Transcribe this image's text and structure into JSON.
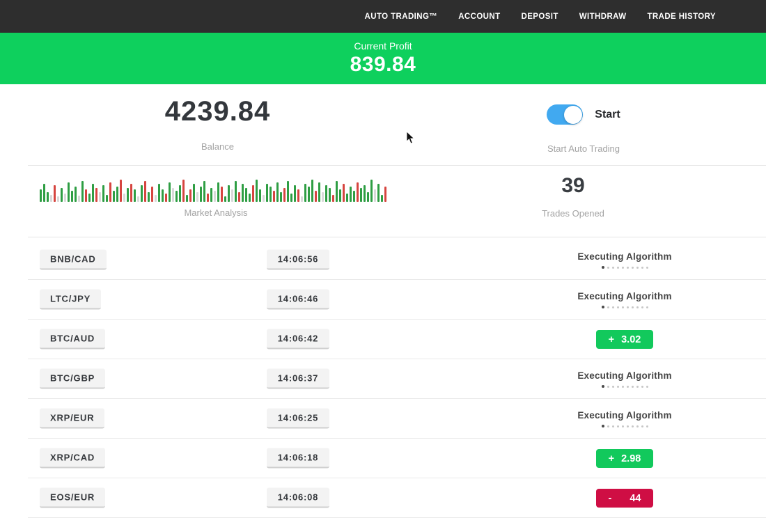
{
  "colors": {
    "nav_bg": "#2e2e2e",
    "banner_green": "#0ed05d",
    "badge_green": "#12c95c",
    "badge_red": "#cf0e44",
    "toggle_blue": "#41a9f0",
    "bar_green": "#2f9e44",
    "bar_red": "#d64540",
    "bar_pale": "#d9d9d9"
  },
  "nav": {
    "items": [
      {
        "label": "AUTO TRADING™"
      },
      {
        "label": "ACCOUNT"
      },
      {
        "label": "DEPOSIT"
      },
      {
        "label": "WITHDRAW"
      },
      {
        "label": "TRADE HISTORY"
      }
    ]
  },
  "banner": {
    "label": "Current Profit",
    "value": "839.84"
  },
  "summary": {
    "balance_value": "4239.84",
    "balance_label": "Balance",
    "toggle_label": "Start",
    "toggle_sublabel": "Start Auto Trading",
    "toggle_state": "on",
    "trades_value": "39",
    "trades_label": "Trades Opened"
  },
  "chart_data": {
    "type": "bar",
    "title": "Market Analysis",
    "note": "decorative mini market-analysis bar strip; heights in px, colors g=green r=red p=pale",
    "bars": [
      [
        18,
        "g"
      ],
      [
        26,
        "g"
      ],
      [
        14,
        "g"
      ],
      [
        10,
        "p"
      ],
      [
        24,
        "r"
      ],
      [
        8,
        "p"
      ],
      [
        20,
        "g"
      ],
      [
        12,
        "p"
      ],
      [
        28,
        "g"
      ],
      [
        16,
        "g"
      ],
      [
        22,
        "g"
      ],
      [
        9,
        "p"
      ],
      [
        30,
        "g"
      ],
      [
        18,
        "r"
      ],
      [
        12,
        "g"
      ],
      [
        26,
        "g"
      ],
      [
        20,
        "r"
      ],
      [
        14,
        "p"
      ],
      [
        24,
        "g"
      ],
      [
        10,
        "g"
      ],
      [
        28,
        "r"
      ],
      [
        16,
        "g"
      ],
      [
        22,
        "g"
      ],
      [
        32,
        "r"
      ],
      [
        12,
        "p"
      ],
      [
        20,
        "g"
      ],
      [
        26,
        "r"
      ],
      [
        18,
        "g"
      ],
      [
        8,
        "p"
      ],
      [
        24,
        "g"
      ],
      [
        30,
        "r"
      ],
      [
        14,
        "g"
      ],
      [
        22,
        "r"
      ],
      [
        10,
        "p"
      ],
      [
        26,
        "g"
      ],
      [
        18,
        "g"
      ],
      [
        12,
        "r"
      ],
      [
        28,
        "g"
      ],
      [
        20,
        "p"
      ],
      [
        16,
        "g"
      ],
      [
        24,
        "g"
      ],
      [
        32,
        "r"
      ],
      [
        10,
        "g"
      ],
      [
        18,
        "r"
      ],
      [
        26,
        "g"
      ],
      [
        14,
        "p"
      ],
      [
        22,
        "g"
      ],
      [
        30,
        "g"
      ],
      [
        12,
        "r"
      ],
      [
        20,
        "g"
      ],
      [
        16,
        "p"
      ],
      [
        28,
        "g"
      ],
      [
        22,
        "r"
      ],
      [
        8,
        "g"
      ],
      [
        24,
        "g"
      ],
      [
        18,
        "p"
      ],
      [
        30,
        "g"
      ],
      [
        14,
        "r"
      ],
      [
        26,
        "g"
      ],
      [
        20,
        "g"
      ],
      [
        12,
        "g"
      ],
      [
        24,
        "r"
      ],
      [
        32,
        "g"
      ],
      [
        18,
        "g"
      ],
      [
        10,
        "p"
      ],
      [
        26,
        "g"
      ],
      [
        22,
        "g"
      ],
      [
        16,
        "r"
      ],
      [
        28,
        "g"
      ],
      [
        14,
        "g"
      ],
      [
        20,
        "r"
      ],
      [
        30,
        "g"
      ],
      [
        12,
        "g"
      ],
      [
        24,
        "g"
      ],
      [
        18,
        "r"
      ],
      [
        8,
        "p"
      ],
      [
        26,
        "g"
      ],
      [
        22,
        "g"
      ],
      [
        32,
        "g"
      ],
      [
        16,
        "r"
      ],
      [
        28,
        "g"
      ],
      [
        14,
        "p"
      ],
      [
        24,
        "g"
      ],
      [
        20,
        "g"
      ],
      [
        10,
        "r"
      ],
      [
        30,
        "g"
      ],
      [
        18,
        "g"
      ],
      [
        26,
        "r"
      ],
      [
        12,
        "g"
      ],
      [
        22,
        "g"
      ],
      [
        16,
        "g"
      ],
      [
        28,
        "r"
      ],
      [
        20,
        "g"
      ],
      [
        24,
        "g"
      ],
      [
        14,
        "g"
      ],
      [
        32,
        "g"
      ],
      [
        18,
        "p"
      ],
      [
        26,
        "g"
      ],
      [
        10,
        "g"
      ],
      [
        22,
        "r"
      ]
    ]
  },
  "trades": {
    "executing_dots": 10,
    "rows": [
      {
        "pair": "BNB/CAD",
        "time": "14:06:56",
        "status": {
          "type": "executing",
          "label": "Executing Algorithm"
        }
      },
      {
        "pair": "LTC/JPY",
        "time": "14:06:46",
        "status": {
          "type": "executing",
          "label": "Executing Algorithm"
        }
      },
      {
        "pair": "BTC/AUD",
        "time": "14:06:42",
        "status": {
          "type": "profit",
          "sign": "+",
          "value": "3.02"
        }
      },
      {
        "pair": "BTC/GBP",
        "time": "14:06:37",
        "status": {
          "type": "executing",
          "label": "Executing Algorithm"
        }
      },
      {
        "pair": "XRP/EUR",
        "time": "14:06:25",
        "status": {
          "type": "executing",
          "label": "Executing Algorithm"
        }
      },
      {
        "pair": "XRP/CAD",
        "time": "14:06:18",
        "status": {
          "type": "profit",
          "sign": "+",
          "value": "2.98"
        }
      },
      {
        "pair": "EOS/EUR",
        "time": "14:06:08",
        "status": {
          "type": "loss",
          "sign": "-",
          "value": "44"
        }
      }
    ]
  }
}
